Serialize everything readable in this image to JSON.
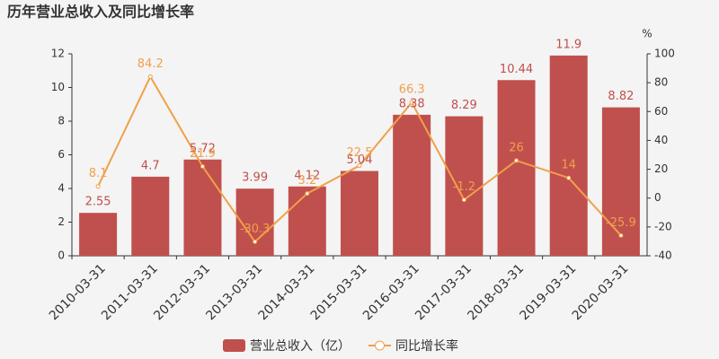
{
  "chart_data": {
    "type": "bar",
    "title": "历年营业总收入及同比增长率",
    "categories": [
      "2010-03-31",
      "2011-03-31",
      "2012-03-31",
      "2013-03-31",
      "2014-03-31",
      "2015-03-31",
      "2016-03-31",
      "2017-03-31",
      "2018-03-31",
      "2019-03-31",
      "2020-03-31"
    ],
    "series": [
      {
        "name": "营业总收入（亿）",
        "type": "bar",
        "color": "#c0504d",
        "values": [
          2.55,
          4.7,
          5.72,
          3.99,
          4.12,
          5.04,
          8.38,
          8.29,
          10.44,
          11.9,
          8.82
        ]
      },
      {
        "name": "同比增长率",
        "type": "line",
        "axis": "y2",
        "color": "#f0a04b",
        "values": [
          8.1,
          84.2,
          21.9,
          -30.3,
          3.2,
          22.5,
          66.3,
          -1.2,
          26,
          14,
          -25.9
        ]
      }
    ],
    "ylim": [
      0,
      12
    ],
    "yticks": [
      0,
      2,
      4,
      6,
      8,
      10,
      12
    ],
    "y2lim": [
      -40,
      100
    ],
    "y2ticks": [
      -40,
      -20,
      0,
      20,
      40,
      60,
      80,
      100
    ],
    "y2_label": "%"
  }
}
